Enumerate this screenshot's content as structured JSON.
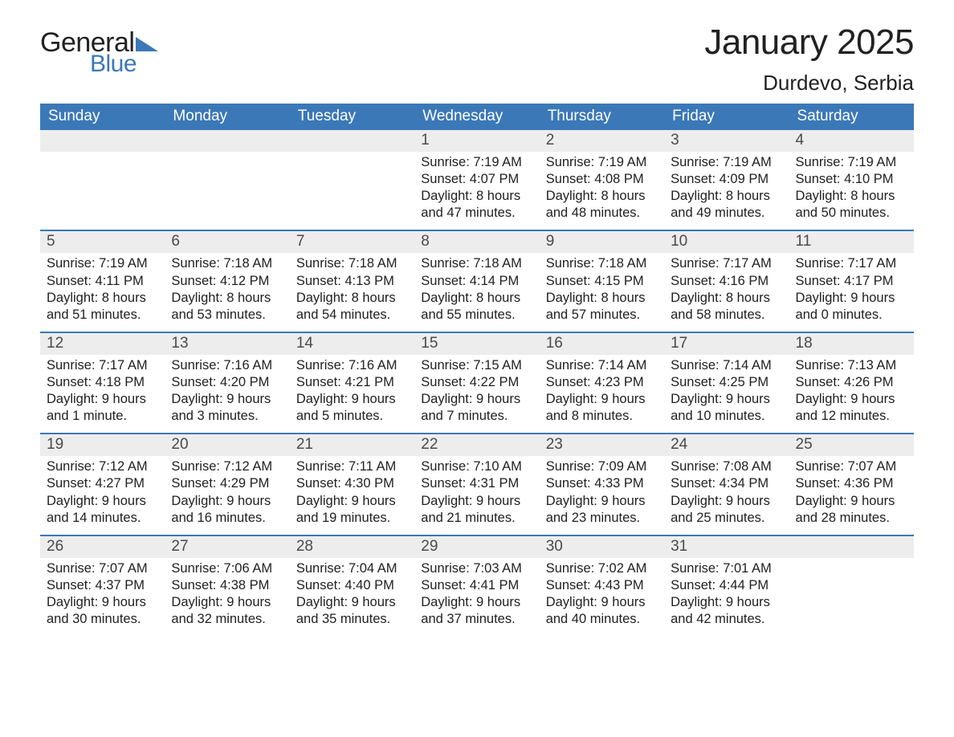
{
  "brand": {
    "general": "General",
    "blue": "Blue",
    "flag_color": "#3b78b8"
  },
  "title": "January 2025",
  "location": "Durdevo, Serbia",
  "colors": {
    "header_bg": "#3b78b8",
    "band_bg": "#ededed",
    "week_divider": "#3b78b8",
    "text": "#212121",
    "header_text": "#ffffff"
  },
  "day_headers": [
    "Sunday",
    "Monday",
    "Tuesday",
    "Wednesday",
    "Thursday",
    "Friday",
    "Saturday"
  ],
  "weeks": [
    [
      {
        "blank": true
      },
      {
        "blank": true
      },
      {
        "blank": true
      },
      {
        "day": "1",
        "sunrise": "Sunrise: 7:19 AM",
        "sunset": "Sunset: 4:07 PM",
        "daylight": "Daylight: 8 hours and 47 minutes."
      },
      {
        "day": "2",
        "sunrise": "Sunrise: 7:19 AM",
        "sunset": "Sunset: 4:08 PM",
        "daylight": "Daylight: 8 hours and 48 minutes."
      },
      {
        "day": "3",
        "sunrise": "Sunrise: 7:19 AM",
        "sunset": "Sunset: 4:09 PM",
        "daylight": "Daylight: 8 hours and 49 minutes."
      },
      {
        "day": "4",
        "sunrise": "Sunrise: 7:19 AM",
        "sunset": "Sunset: 4:10 PM",
        "daylight": "Daylight: 8 hours and 50 minutes."
      }
    ],
    [
      {
        "day": "5",
        "sunrise": "Sunrise: 7:19 AM",
        "sunset": "Sunset: 4:11 PM",
        "daylight": "Daylight: 8 hours and 51 minutes."
      },
      {
        "day": "6",
        "sunrise": "Sunrise: 7:18 AM",
        "sunset": "Sunset: 4:12 PM",
        "daylight": "Daylight: 8 hours and 53 minutes."
      },
      {
        "day": "7",
        "sunrise": "Sunrise: 7:18 AM",
        "sunset": "Sunset: 4:13 PM",
        "daylight": "Daylight: 8 hours and 54 minutes."
      },
      {
        "day": "8",
        "sunrise": "Sunrise: 7:18 AM",
        "sunset": "Sunset: 4:14 PM",
        "daylight": "Daylight: 8 hours and 55 minutes."
      },
      {
        "day": "9",
        "sunrise": "Sunrise: 7:18 AM",
        "sunset": "Sunset: 4:15 PM",
        "daylight": "Daylight: 8 hours and 57 minutes."
      },
      {
        "day": "10",
        "sunrise": "Sunrise: 7:17 AM",
        "sunset": "Sunset: 4:16 PM",
        "daylight": "Daylight: 8 hours and 58 minutes."
      },
      {
        "day": "11",
        "sunrise": "Sunrise: 7:17 AM",
        "sunset": "Sunset: 4:17 PM",
        "daylight": "Daylight: 9 hours and 0 minutes."
      }
    ],
    [
      {
        "day": "12",
        "sunrise": "Sunrise: 7:17 AM",
        "sunset": "Sunset: 4:18 PM",
        "daylight": "Daylight: 9 hours and 1 minute."
      },
      {
        "day": "13",
        "sunrise": "Sunrise: 7:16 AM",
        "sunset": "Sunset: 4:20 PM",
        "daylight": "Daylight: 9 hours and 3 minutes."
      },
      {
        "day": "14",
        "sunrise": "Sunrise: 7:16 AM",
        "sunset": "Sunset: 4:21 PM",
        "daylight": "Daylight: 9 hours and 5 minutes."
      },
      {
        "day": "15",
        "sunrise": "Sunrise: 7:15 AM",
        "sunset": "Sunset: 4:22 PM",
        "daylight": "Daylight: 9 hours and 7 minutes."
      },
      {
        "day": "16",
        "sunrise": "Sunrise: 7:14 AM",
        "sunset": "Sunset: 4:23 PM",
        "daylight": "Daylight: 9 hours and 8 minutes."
      },
      {
        "day": "17",
        "sunrise": "Sunrise: 7:14 AM",
        "sunset": "Sunset: 4:25 PM",
        "daylight": "Daylight: 9 hours and 10 minutes."
      },
      {
        "day": "18",
        "sunrise": "Sunrise: 7:13 AM",
        "sunset": "Sunset: 4:26 PM",
        "daylight": "Daylight: 9 hours and 12 minutes."
      }
    ],
    [
      {
        "day": "19",
        "sunrise": "Sunrise: 7:12 AM",
        "sunset": "Sunset: 4:27 PM",
        "daylight": "Daylight: 9 hours and 14 minutes."
      },
      {
        "day": "20",
        "sunrise": "Sunrise: 7:12 AM",
        "sunset": "Sunset: 4:29 PM",
        "daylight": "Daylight: 9 hours and 16 minutes."
      },
      {
        "day": "21",
        "sunrise": "Sunrise: 7:11 AM",
        "sunset": "Sunset: 4:30 PM",
        "daylight": "Daylight: 9 hours and 19 minutes."
      },
      {
        "day": "22",
        "sunrise": "Sunrise: 7:10 AM",
        "sunset": "Sunset: 4:31 PM",
        "daylight": "Daylight: 9 hours and 21 minutes."
      },
      {
        "day": "23",
        "sunrise": "Sunrise: 7:09 AM",
        "sunset": "Sunset: 4:33 PM",
        "daylight": "Daylight: 9 hours and 23 minutes."
      },
      {
        "day": "24",
        "sunrise": "Sunrise: 7:08 AM",
        "sunset": "Sunset: 4:34 PM",
        "daylight": "Daylight: 9 hours and 25 minutes."
      },
      {
        "day": "25",
        "sunrise": "Sunrise: 7:07 AM",
        "sunset": "Sunset: 4:36 PM",
        "daylight": "Daylight: 9 hours and 28 minutes."
      }
    ],
    [
      {
        "day": "26",
        "sunrise": "Sunrise: 7:07 AM",
        "sunset": "Sunset: 4:37 PM",
        "daylight": "Daylight: 9 hours and 30 minutes."
      },
      {
        "day": "27",
        "sunrise": "Sunrise: 7:06 AM",
        "sunset": "Sunset: 4:38 PM",
        "daylight": "Daylight: 9 hours and 32 minutes."
      },
      {
        "day": "28",
        "sunrise": "Sunrise: 7:04 AM",
        "sunset": "Sunset: 4:40 PM",
        "daylight": "Daylight: 9 hours and 35 minutes."
      },
      {
        "day": "29",
        "sunrise": "Sunrise: 7:03 AM",
        "sunset": "Sunset: 4:41 PM",
        "daylight": "Daylight: 9 hours and 37 minutes."
      },
      {
        "day": "30",
        "sunrise": "Sunrise: 7:02 AM",
        "sunset": "Sunset: 4:43 PM",
        "daylight": "Daylight: 9 hours and 40 minutes."
      },
      {
        "day": "31",
        "sunrise": "Sunrise: 7:01 AM",
        "sunset": "Sunset: 4:44 PM",
        "daylight": "Daylight: 9 hours and 42 minutes."
      },
      {
        "blank": true
      }
    ]
  ]
}
